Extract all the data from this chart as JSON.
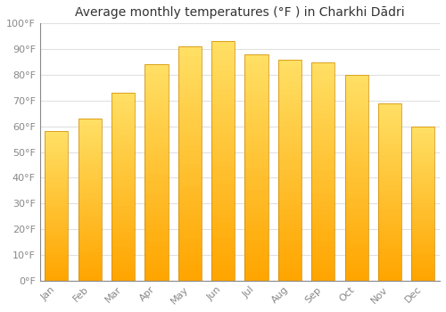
{
  "title": "Average monthly temperatures (°F ) in Charkhi Dādri",
  "months": [
    "Jan",
    "Feb",
    "Mar",
    "Apr",
    "May",
    "Jun",
    "Jul",
    "Aug",
    "Sep",
    "Oct",
    "Nov",
    "Dec"
  ],
  "values": [
    58,
    63,
    73,
    84,
    91,
    93,
    88,
    86,
    85,
    80,
    69,
    60
  ],
  "color_bottom": "#FFA500",
  "color_top": "#FFE066",
  "ylim": [
    0,
    100
  ],
  "yticks": [
    0,
    10,
    20,
    30,
    40,
    50,
    60,
    70,
    80,
    90,
    100
  ],
  "ytick_labels": [
    "0°F",
    "10°F",
    "20°F",
    "30°F",
    "40°F",
    "50°F",
    "60°F",
    "70°F",
    "80°F",
    "90°F",
    "100°F"
  ],
  "background_color": "#ffffff",
  "grid_color": "#e0e0e0",
  "title_fontsize": 10,
  "tick_fontsize": 8,
  "bar_outline_color": "#cc8800"
}
